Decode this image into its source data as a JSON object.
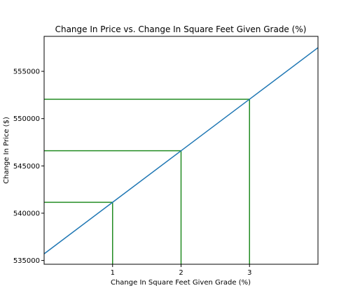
{
  "chart_data": {
    "type": "line",
    "title": "Change In Price vs. Change In Square Feet Given Grade (%)",
    "xlabel": "Change In Square Feet Given Grade (%)",
    "ylabel": "Change In Price ($)",
    "xlim": [
      0,
      4
    ],
    "ylim": [
      534600,
      558700
    ],
    "xticks": [
      1,
      2,
      3
    ],
    "yticks": [
      535000,
      540000,
      545000,
      550000,
      555000
    ],
    "grid": false,
    "legend": "none",
    "series": [
      {
        "x": [
          0,
          1,
          2,
          3,
          4
        ],
        "y": [
          535700,
          541150,
          546600,
          552050,
          557500
        ],
        "color": "#1f77b4"
      }
    ],
    "reference_lines": [
      {
        "x": 1,
        "y": 541150,
        "color": "#228b22"
      },
      {
        "x": 2,
        "y": 546600,
        "color": "#228b22"
      },
      {
        "x": 3,
        "y": 552050,
        "color": "#228b22"
      }
    ]
  }
}
